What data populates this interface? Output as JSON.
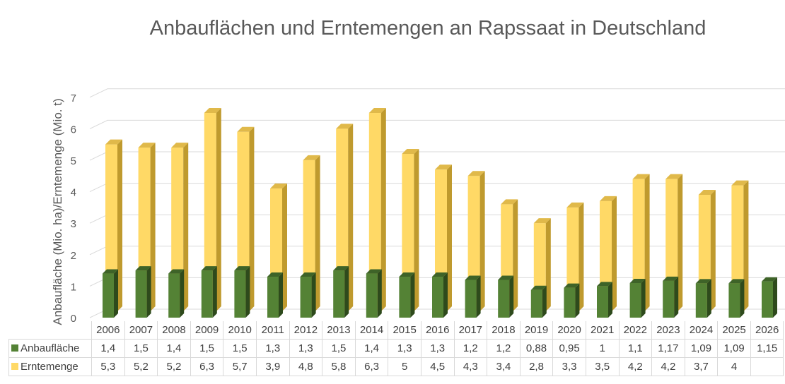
{
  "chart_data": {
    "type": "bar",
    "title": "Anbauflächen und Erntemengen an Rapssaat in Deutschland",
    "xlabel": "",
    "ylabel": "Anbaufläche (Mio. ha)/Erntemenge (Mio. t)",
    "ylim": [
      0,
      7
    ],
    "yticks": [
      "0",
      "1",
      "2",
      "3",
      "4",
      "5",
      "6",
      "7"
    ],
    "grid": true,
    "legend": "data-table",
    "categories": [
      "2006",
      "2007",
      "2008",
      "2009",
      "2010",
      "2011",
      "2012",
      "2013",
      "2014",
      "2015",
      "2016",
      "2017",
      "2018",
      "2019",
      "2020",
      "2021",
      "2022",
      "2023",
      "2024",
      "2025",
      "2026"
    ],
    "series": [
      {
        "name": "Anbaufläche",
        "color": "#548235",
        "values": [
          1.4,
          1.5,
          1.4,
          1.5,
          1.5,
          1.3,
          1.3,
          1.5,
          1.4,
          1.3,
          1.3,
          1.2,
          1.2,
          0.88,
          0.95,
          1,
          1.1,
          1.17,
          1.09,
          1.09,
          1.15
        ],
        "labels": [
          "1,4",
          "1,5",
          "1,4",
          "1,5",
          "1,5",
          "1,3",
          "1,3",
          "1,5",
          "1,4",
          "1,3",
          "1,3",
          "1,2",
          "1,2",
          "0,88",
          "0,95",
          "1",
          "1,1",
          "1,17",
          "1,09",
          "1,09",
          "1,15"
        ]
      },
      {
        "name": "Erntemenge",
        "color": "#FFD966",
        "values": [
          5.3,
          5.2,
          5.2,
          6.3,
          5.7,
          3.9,
          4.8,
          5.8,
          6.3,
          5,
          4.5,
          4.3,
          3.4,
          2.8,
          3.3,
          3.5,
          4.2,
          4.2,
          3.7,
          4,
          null
        ],
        "labels": [
          "5,3",
          "5,2",
          "5,2",
          "6,3",
          "5,7",
          "3,9",
          "4,8",
          "5,8",
          "6,3",
          "5",
          "4,5",
          "4,3",
          "3,4",
          "2,8",
          "3,3",
          "3,5",
          "4,2",
          "4,2",
          "3,7",
          "4",
          ""
        ]
      }
    ]
  }
}
